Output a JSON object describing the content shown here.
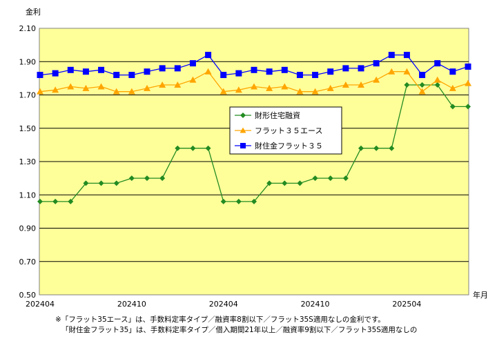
{
  "chart_data": {
    "type": "line",
    "ylabel": "金利",
    "xlabel": "年月",
    "ylim": [
      0.5,
      2.1
    ],
    "yticks": [
      "2.10",
      "1.90",
      "1.70",
      "1.50",
      "1.30",
      "1.10",
      "0.90",
      "0.70",
      "0.50"
    ],
    "x_tick_labels": [
      {
        "index": 0,
        "label": "202404"
      },
      {
        "index": 6,
        "label": "202410"
      },
      {
        "index": 12,
        "label": "202404"
      },
      {
        "index": 18,
        "label": "202410"
      },
      {
        "index": 24,
        "label": "202504"
      }
    ],
    "n_points": 29,
    "grid": "horizontal",
    "legend_placement": "center-right",
    "series": [
      {
        "name": "財形住宅融資",
        "color": "#228B22",
        "marker": "diamond",
        "values": [
          1.06,
          1.06,
          1.06,
          1.17,
          1.17,
          1.17,
          1.2,
          1.2,
          1.2,
          1.38,
          1.38,
          1.38,
          1.06,
          1.06,
          1.06,
          1.17,
          1.17,
          1.17,
          1.2,
          1.2,
          1.2,
          1.38,
          1.38,
          1.38,
          1.76,
          1.76,
          1.76,
          1.63,
          1.63
        ]
      },
      {
        "name": "フラット３５エース",
        "color": "#FFA500",
        "marker": "triangle",
        "values": [
          1.72,
          1.73,
          1.75,
          1.74,
          1.75,
          1.72,
          1.72,
          1.74,
          1.76,
          1.76,
          1.79,
          1.84,
          1.72,
          1.73,
          1.75,
          1.74,
          1.75,
          1.72,
          1.72,
          1.74,
          1.76,
          1.76,
          1.79,
          1.84,
          1.84,
          1.72,
          1.79,
          1.74,
          1.77
        ]
      },
      {
        "name": "財住金フラット３５",
        "color": "#0000FF",
        "marker": "square",
        "values": [
          1.82,
          1.83,
          1.85,
          1.84,
          1.85,
          1.82,
          1.82,
          1.84,
          1.86,
          1.86,
          1.89,
          1.94,
          1.82,
          1.83,
          1.85,
          1.84,
          1.85,
          1.82,
          1.82,
          1.84,
          1.86,
          1.86,
          1.89,
          1.94,
          1.94,
          1.82,
          1.89,
          1.84,
          1.87
        ]
      }
    ],
    "colors": {
      "plot_background": "#FFFF99",
      "gridline": "#000000",
      "axis": "#808080"
    }
  },
  "notes": [
    "※「フラット35エース」は、手数料定率タイプ／融資率8割以下／フラット35S適用なしの金利です。",
    "「財住金フラット35」は、手数料定率タイプ／借入期間21年以上／融資率9割以下／フラット35S適用なしの"
  ]
}
